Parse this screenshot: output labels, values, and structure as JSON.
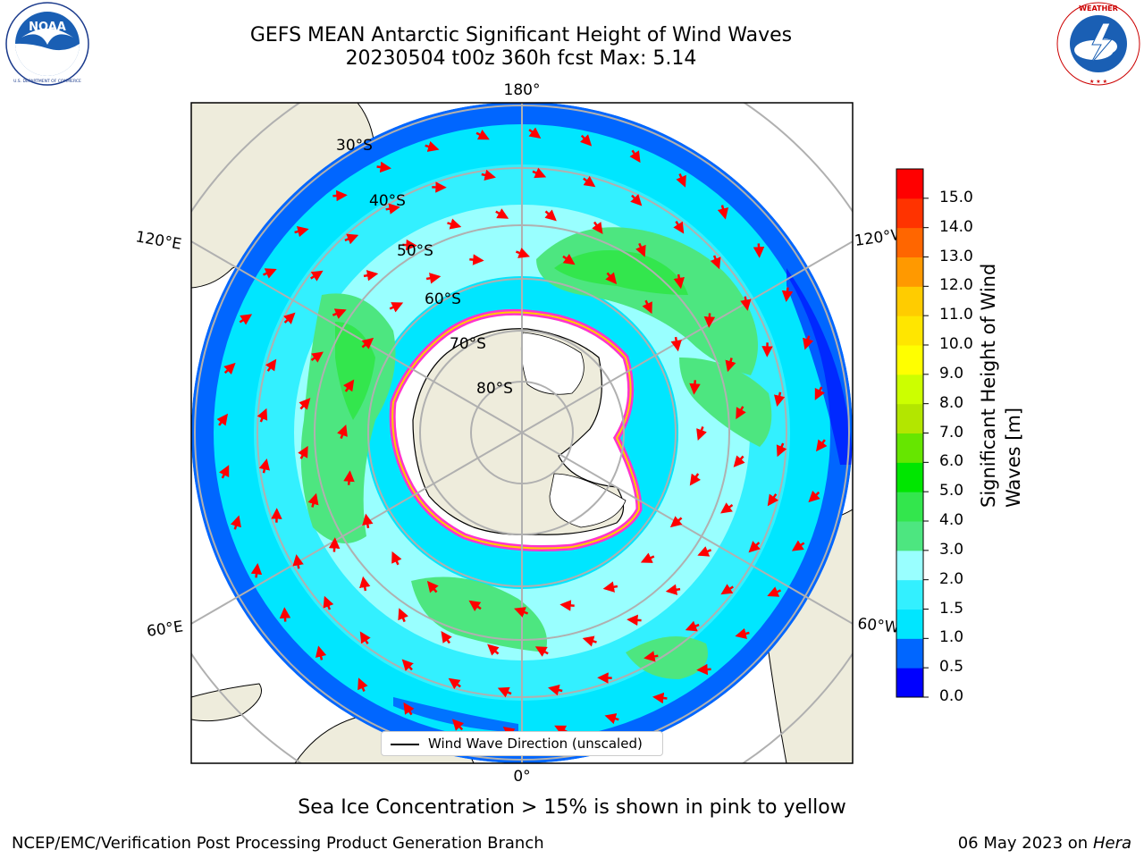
{
  "header": {
    "title_line1": "GEFS MEAN Antarctic Significant Height of Wind Waves",
    "title_line2": "20230504 t00z 360h fcst   Max: 5.14"
  },
  "logos": {
    "left": {
      "name": "noaa-logo",
      "text": "NOAA",
      "ring_text": "NATIONAL OCEANIC AND ATMOSPHERIC ADMINISTRATION · U.S. DEPARTMENT OF COMMERCE"
    },
    "right": {
      "name": "nws-logo",
      "ring_text": "NATIONAL WEATHER SERVICE"
    }
  },
  "map": {
    "projection": "south-polar-stereographic",
    "lon_labels": {
      "top": "180°",
      "bottom": "0°",
      "upper_left": "120°E",
      "upper_right": "120°W",
      "lower_left": "60°E",
      "lower_right": "60°W"
    },
    "lat_labels": [
      "30°S",
      "40°S",
      "50°S",
      "60°S",
      "70°S",
      "80°S"
    ],
    "legend_label": "Wind Wave Direction (unscaled)",
    "colors": {
      "land": "#eeecdc",
      "ocean_default": "#33e6f5",
      "arrows": "#ff0000",
      "grid": "#b0b0b0",
      "ice_edge": "#ff33cc"
    }
  },
  "colorbar": {
    "title_line1": "Significant Height of Wind",
    "title_line2": "Waves [m]",
    "ticks": [
      "0.0",
      "0.5",
      "1.0",
      "1.5",
      "2.0",
      "3.0",
      "4.0",
      "5.0",
      "6.0",
      "7.0",
      "8.0",
      "9.0",
      "10.0",
      "11.0",
      "12.0",
      "13.0",
      "14.0",
      "15.0"
    ],
    "colors": [
      "#0000ff",
      "#0066ff",
      "#00e6ff",
      "#33f0ff",
      "#99ffff",
      "#4de680",
      "#33e64d",
      "#00e600",
      "#66e600",
      "#b3e600",
      "#ccff00",
      "#ffff00",
      "#ffe600",
      "#ffcc00",
      "#ff9900",
      "#ff6600",
      "#ff3300",
      "#ff0000"
    ]
  },
  "footer": {
    "note": "Sea Ice Concentration > 15% is shown in pink to yellow",
    "left": "NCEP/EMC/Verification Post Processing Product Generation Branch",
    "right_date": "06 May 2023 on",
    "right_host": "Hera"
  }
}
